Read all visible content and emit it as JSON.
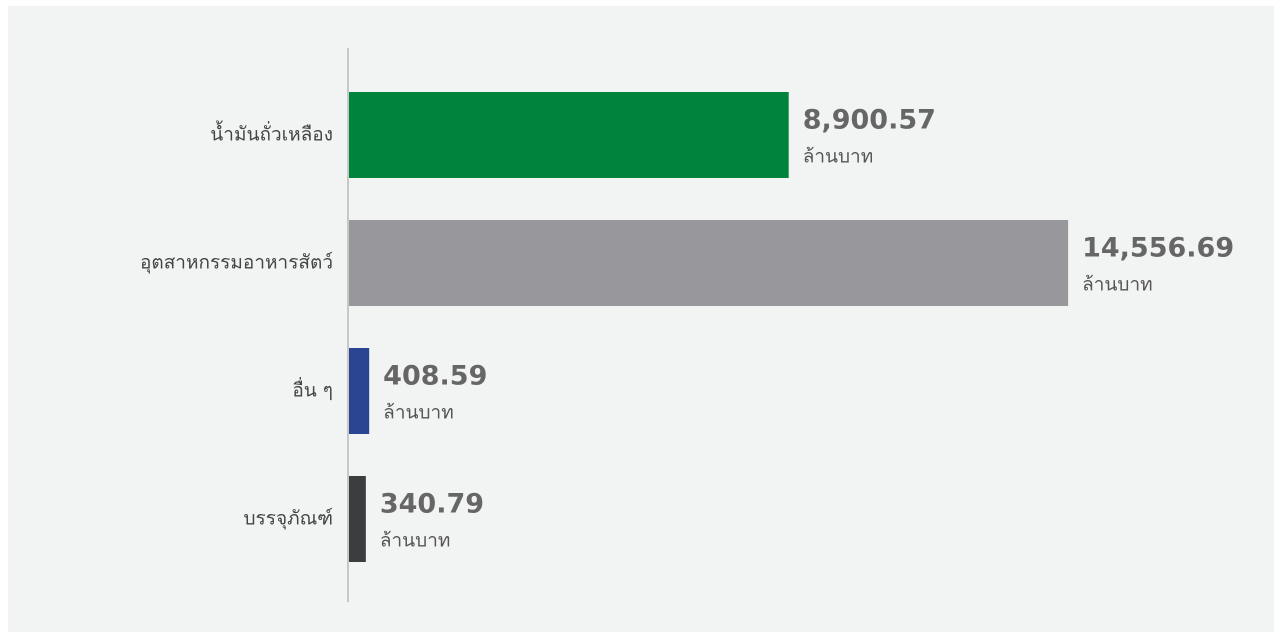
{
  "chart_data": {
    "type": "hbar",
    "categories": [
      "น้ำมันถั่วเหลือง",
      "อุตสาหกรรมอาหารสัตว์",
      "อื่น ๆ",
      "บรรจุภัณฑ์"
    ],
    "values": [
      8900.57,
      14556.69,
      408.59,
      340.79
    ],
    "value_labels": [
      "8,900.57",
      "14,556.69",
      "408.59",
      "340.79"
    ],
    "unit": "ล้านบาท",
    "colors": [
      "#00843d",
      "#98989c",
      "#2b4593",
      "#3c3d3f"
    ],
    "xlim": [
      0,
      15000
    ]
  }
}
